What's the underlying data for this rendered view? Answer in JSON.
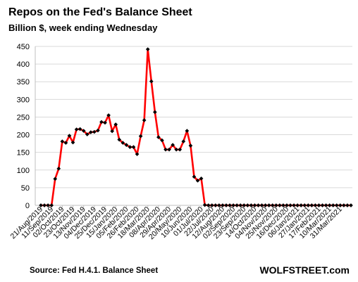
{
  "chart_data": {
    "type": "line",
    "title": "Repos on the Fed's Balance Sheet",
    "subtitle": "Billion $, week ending Wednesday",
    "ylim": [
      0,
      450
    ],
    "yticks": [
      0,
      50,
      100,
      150,
      200,
      250,
      300,
      350,
      400,
      450
    ],
    "grid": "horizontal",
    "legend": "none",
    "line_color": "#ff0000",
    "marker_color": "#000000",
    "x_tick_labels": [
      "21/Aug/2019",
      "11/Sep/2019",
      "02/Oct/2019",
      "23/Oct/2019",
      "13/Nov/2019",
      "04/Dec/2019",
      "25/Dec/2019",
      "15/Jan/2020",
      "05/Feb/2020",
      "26/Feb/2020",
      "18/Mar/2020",
      "08/Apr/2020",
      "29/Apr/2020",
      "20/May/2020",
      "10/Jun/2020",
      "01/Jul/2020",
      "22/Jul/2020",
      "12/Aug/2020",
      "02/Sep/2020",
      "23/Sep/2020",
      "14/Oct/2020",
      "04/Nov/2020",
      "25/Nov/2020",
      "16/Dec/2020",
      "06/Jan/2021",
      "27/Jan/2021",
      "17/Feb/2021",
      "10/Mar/2021",
      "31/Mar/2021"
    ],
    "series": [
      {
        "values": [
          0,
          0,
          0,
          0,
          75,
          104,
          181,
          177,
          197,
          178,
          215,
          216,
          211,
          201,
          207,
          208,
          212,
          236,
          234,
          255,
          210,
          229,
          186,
          177,
          171,
          165,
          165,
          145,
          196,
          241,
          442,
          351,
          264,
          193,
          184,
          158,
          158,
          171,
          158,
          158,
          181,
          211,
          169,
          81,
          70,
          76,
          1,
          0,
          0,
          0,
          0,
          0,
          0,
          0,
          0,
          0,
          0,
          0,
          0,
          0,
          0,
          0,
          0,
          0,
          0,
          0,
          0,
          0,
          0,
          0,
          0,
          0,
          0,
          0,
          0,
          0,
          0,
          0,
          0,
          0,
          0,
          0,
          0,
          0,
          0,
          0,
          0,
          0
        ]
      }
    ]
  },
  "footer": {
    "source": "Source: Fed H.4.1. Balance Sheet",
    "brand": "WOLFSTREET.com"
  }
}
